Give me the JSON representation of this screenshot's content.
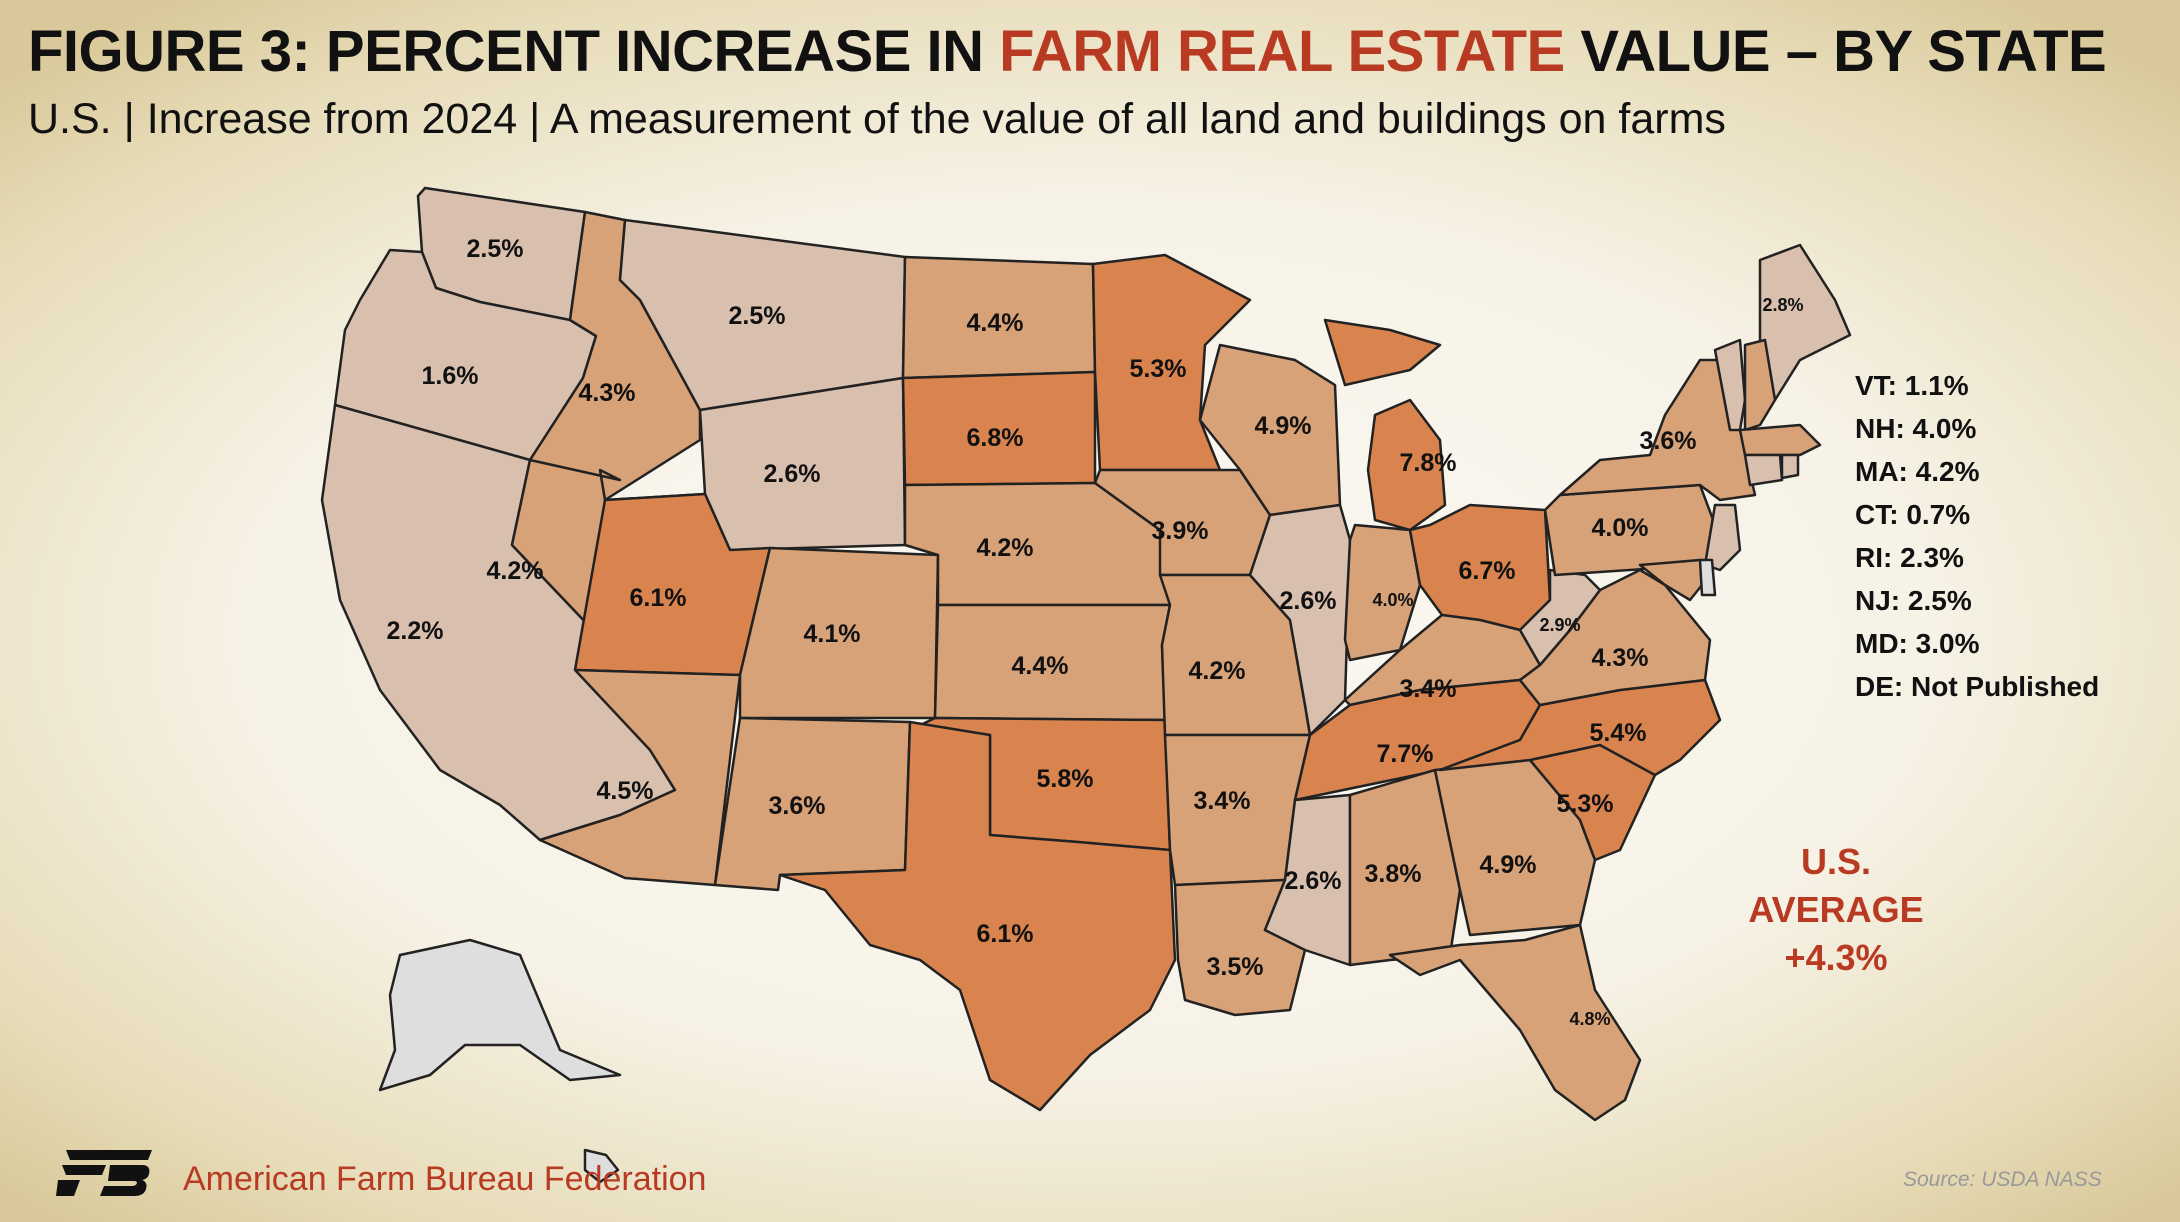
{
  "title": {
    "prefix": "FIGURE 3: PERCENT INCREASE IN ",
    "highlight": "FARM REAL ESTATE",
    "suffix": " VALUE – BY STATE"
  },
  "subtitle": "U.S. | Increase from 2024 | A measurement of the value of all land and buildings on farms",
  "colors": {
    "title_highlight": "#b83a22",
    "low": "#d9bfae",
    "mid": "#d8a278",
    "high": "#d9844f",
    "na": "#dedede"
  },
  "states": [
    {
      "code": "WA",
      "label": "2.5%",
      "value": 2.5
    },
    {
      "code": "OR",
      "label": "1.6%",
      "value": 1.6
    },
    {
      "code": "CA",
      "label": "2.2%",
      "value": 2.2
    },
    {
      "code": "ID",
      "label": "4.3%",
      "value": 4.3
    },
    {
      "code": "NV",
      "label": "4.2%",
      "value": 4.2
    },
    {
      "code": "MT",
      "label": "2.5%",
      "value": 2.5
    },
    {
      "code": "WY",
      "label": "2.6%",
      "value": 2.6
    },
    {
      "code": "UT",
      "label": "6.1%",
      "value": 6.1
    },
    {
      "code": "AZ",
      "label": "4.5%",
      "value": 4.5
    },
    {
      "code": "CO",
      "label": "4.1%",
      "value": 4.1
    },
    {
      "code": "NM",
      "label": "3.6%",
      "value": 3.6
    },
    {
      "code": "ND",
      "label": "4.4%",
      "value": 4.4
    },
    {
      "code": "SD",
      "label": "6.8%",
      "value": 6.8
    },
    {
      "code": "NE",
      "label": "4.2%",
      "value": 4.2
    },
    {
      "code": "KS",
      "label": "4.4%",
      "value": 4.4
    },
    {
      "code": "OK",
      "label": "5.8%",
      "value": 5.8
    },
    {
      "code": "TX",
      "label": "6.1%",
      "value": 6.1
    },
    {
      "code": "MN",
      "label": "5.3%",
      "value": 5.3
    },
    {
      "code": "IA",
      "label": "3.9%",
      "value": 3.9
    },
    {
      "code": "MO",
      "label": "4.2%",
      "value": 4.2
    },
    {
      "code": "AR",
      "label": "3.4%",
      "value": 3.4
    },
    {
      "code": "LA",
      "label": "3.5%",
      "value": 3.5
    },
    {
      "code": "WI",
      "label": "4.9%",
      "value": 4.9
    },
    {
      "code": "IL",
      "label": "2.6%",
      "value": 2.6
    },
    {
      "code": "MI",
      "label": "7.8%",
      "value": 7.8
    },
    {
      "code": "IN",
      "label": "4.0%",
      "value": 4.0
    },
    {
      "code": "OH",
      "label": "6.7%",
      "value": 6.7
    },
    {
      "code": "KY",
      "label": "3.4%",
      "value": 3.4
    },
    {
      "code": "TN",
      "label": "7.7%",
      "value": 7.7
    },
    {
      "code": "MS",
      "label": "2.6%",
      "value": 2.6
    },
    {
      "code": "AL",
      "label": "3.8%",
      "value": 3.8
    },
    {
      "code": "GA",
      "label": "4.9%",
      "value": 4.9
    },
    {
      "code": "FL",
      "label": "4.8%",
      "value": 4.8
    },
    {
      "code": "SC",
      "label": "5.3%",
      "value": 5.3
    },
    {
      "code": "NC",
      "label": "5.4%",
      "value": 5.4
    },
    {
      "code": "VA",
      "label": "4.3%",
      "value": 4.3
    },
    {
      "code": "WV",
      "label": "2.9%",
      "value": 2.9
    },
    {
      "code": "PA",
      "label": "4.0%",
      "value": 4.0
    },
    {
      "code": "NY",
      "label": "3.6%",
      "value": 3.6
    },
    {
      "code": "ME",
      "label": "2.8%",
      "value": 2.8
    },
    {
      "code": "VT",
      "label": "",
      "value": 1.1
    },
    {
      "code": "NH",
      "label": "",
      "value": 4.0
    },
    {
      "code": "MA",
      "label": "",
      "value": 4.2
    },
    {
      "code": "CT",
      "label": "",
      "value": 0.7
    },
    {
      "code": "RI",
      "label": "",
      "value": 2.3
    },
    {
      "code": "NJ",
      "label": "",
      "value": 2.5
    },
    {
      "code": "MD",
      "label": "",
      "value": 3.0
    },
    {
      "code": "DE",
      "label": "",
      "value": null
    },
    {
      "code": "AK",
      "label": "",
      "value": null
    },
    {
      "code": "HI",
      "label": "",
      "value": null
    }
  ],
  "small_states": [
    "VT: 1.1%",
    "NH: 4.0%",
    "MA: 4.2%",
    "CT: 0.7%",
    "RI: 2.3%",
    "NJ: 2.5%",
    "MD: 3.0%",
    "DE: Not Published"
  ],
  "us_average": {
    "line1": "U.S.",
    "line2": "AVERAGE",
    "value": "+4.3%"
  },
  "footer": {
    "org": "American Farm Bureau Federation",
    "logo_text": "FB",
    "source": "Source: USDA NASS"
  }
}
